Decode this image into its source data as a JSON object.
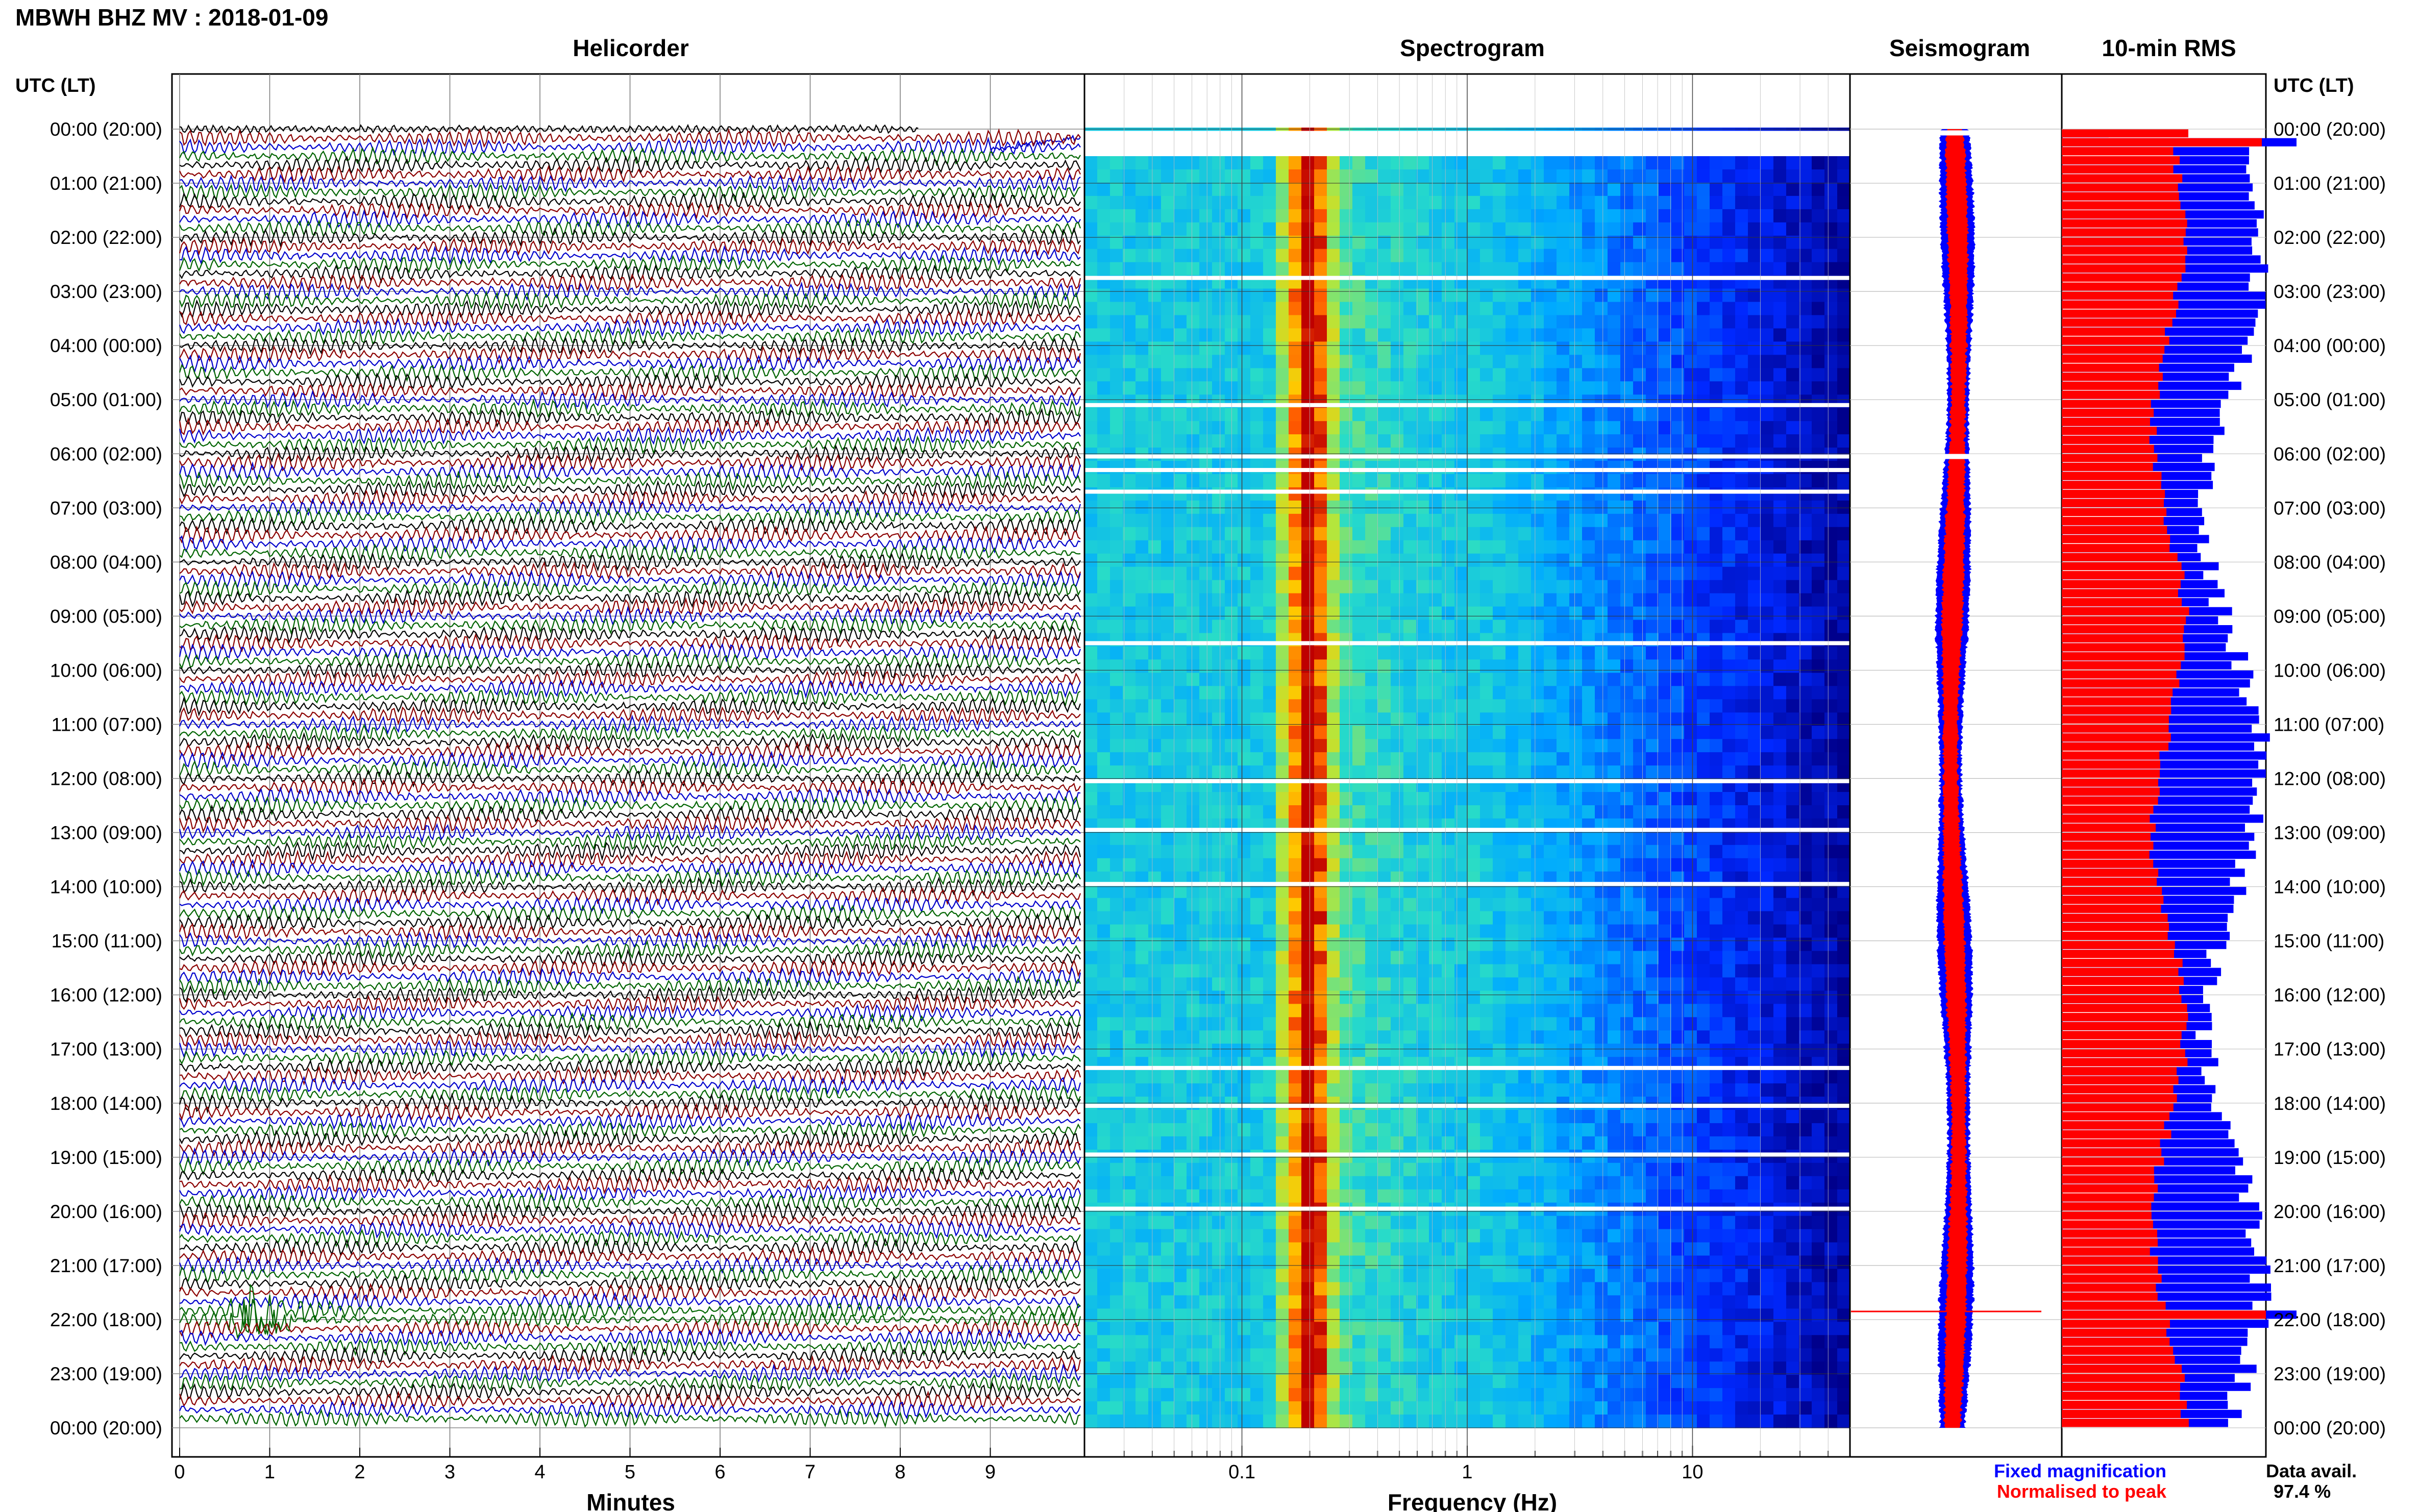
{
  "header": {
    "title": "MBWH BHZ MV : 2018-01-09"
  },
  "colors": {
    "trace_cycle": [
      "#000000",
      "#8b0000",
      "#0000cc",
      "#006400"
    ],
    "fixed": "#0000ff",
    "normalised": "#ff0000"
  },
  "axes": {
    "left_header": "UTC (LT)",
    "right_header": "UTC (LT)",
    "time_labels": [
      "00:00 (20:00)",
      "01:00 (21:00)",
      "02:00 (22:00)",
      "03:00 (23:00)",
      "04:00 (00:00)",
      "05:00 (01:00)",
      "06:00 (02:00)",
      "07:00 (03:00)",
      "08:00 (04:00)",
      "09:00 (05:00)",
      "10:00 (06:00)",
      "11:00 (07:00)",
      "12:00 (08:00)",
      "13:00 (09:00)",
      "14:00 (10:00)",
      "15:00 (11:00)",
      "16:00 (12:00)",
      "17:00 (13:00)",
      "18:00 (14:00)",
      "19:00 (15:00)",
      "20:00 (16:00)",
      "21:00 (17:00)",
      "22:00 (18:00)",
      "23:00 (19:00)",
      "00:00 (20:00)"
    ]
  },
  "footer": {
    "legend_fixed": "Fixed magnification",
    "legend_norm": "Normalised to peak",
    "avail_label": "Data avail.",
    "avail_value": "97.4 %"
  },
  "chart_data": [
    {
      "type": "line",
      "title": "Helicorder",
      "xlabel": "Minutes",
      "ylabel": "UTC (LT)",
      "x_ticks": [
        "0",
        "1",
        "2",
        "3",
        "4",
        "5",
        "6",
        "7",
        "8",
        "9"
      ],
      "xlim": [
        0,
        10
      ],
      "rows": 144,
      "row_minutes": 10,
      "event": {
        "hour": 21,
        "row_offset": 5,
        "start_min": 0.5,
        "peak_min": 0.8
      },
      "grid": true
    },
    {
      "type": "heatmap",
      "title": "Spectrogram",
      "xlabel": "Frequency (Hz)",
      "x_scale": "log",
      "xlim": [
        0.02,
        50
      ],
      "x_ticks": [
        "0.1",
        "1",
        "10"
      ],
      "x_tick_values": [
        0.1,
        1,
        10
      ],
      "peak_band_hz": [
        0.17,
        0.25
      ],
      "y_hours": 24
    },
    {
      "type": "line",
      "title": "Seismogram",
      "y_hours": 24
    },
    {
      "type": "bar",
      "title": "10-min RMS",
      "y_hours": 24,
      "series": [
        {
          "name": "Fixed magnification"
        },
        {
          "name": "Normalised to peak"
        }
      ]
    }
  ]
}
